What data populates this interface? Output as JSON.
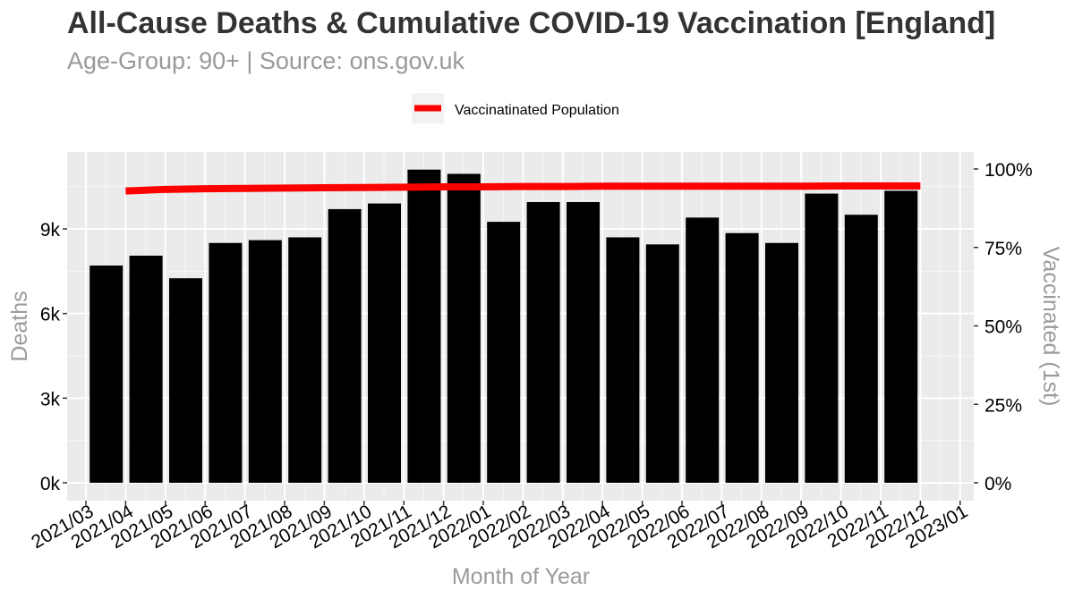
{
  "chart_data": {
    "type": "bar",
    "title": "All-Cause Deaths & Cumulative COVID-19 Vaccination [England]",
    "subtitle": "Age-Group: 90+ | Source: ons.gov.uk",
    "xlabel": "Month of Year",
    "ylabel": "Deaths",
    "y2label": "Vaccinated (1st)",
    "ylim": [
      0,
      11300
    ],
    "y2lim": [
      0,
      1.0
    ],
    "y_ticks": [
      "0k",
      "3k",
      "6k",
      "9k"
    ],
    "y_tick_values": [
      0,
      3000,
      6000,
      9000
    ],
    "y2_ticks": [
      "0%",
      "25%",
      "50%",
      "75%",
      "100%"
    ],
    "y2_tick_values": [
      0,
      0.25,
      0.5,
      0.75,
      1.0
    ],
    "x_ticks": [
      "2021/03",
      "2021/04",
      "2021/05",
      "2021/06",
      "2021/07",
      "2021/08",
      "2021/09",
      "2021/10",
      "2021/11",
      "2021/12",
      "2022/01",
      "2022/02",
      "2022/03",
      "2022/04",
      "2022/05",
      "2022/06",
      "2022/07",
      "2022/08",
      "2022/09",
      "2022/10",
      "2022/11",
      "2022/12",
      "2023/01"
    ],
    "categories": [
      "2021/04",
      "2021/05",
      "2021/06",
      "2021/07",
      "2021/08",
      "2021/09",
      "2021/10",
      "2021/11",
      "2021/12",
      "2022/01",
      "2022/02",
      "2022/03",
      "2022/04",
      "2022/05",
      "2022/06",
      "2022/07",
      "2022/08",
      "2022/09",
      "2022/10",
      "2022/11",
      "2022/12"
    ],
    "series": [
      {
        "name": "Deaths",
        "type": "bar",
        "color": "#000000",
        "values": [
          7700,
          8050,
          7250,
          8500,
          8600,
          8700,
          9700,
          9900,
          11100,
          10950,
          9250,
          9950,
          9950,
          8700,
          8450,
          9400,
          8850,
          8500,
          10250,
          9500,
          10350
        ]
      },
      {
        "name": "Vaccinatinated Population",
        "type": "line",
        "color": "#ff0000",
        "values": [
          0.93,
          0.935,
          0.937,
          0.938,
          0.939,
          0.94,
          0.941,
          0.942,
          0.943,
          0.943,
          0.944,
          0.944,
          0.945,
          0.945,
          0.945,
          0.945,
          0.945,
          0.945,
          0.946,
          0.946,
          0.946
        ]
      }
    ],
    "grid": true,
    "legend_position": "top"
  }
}
